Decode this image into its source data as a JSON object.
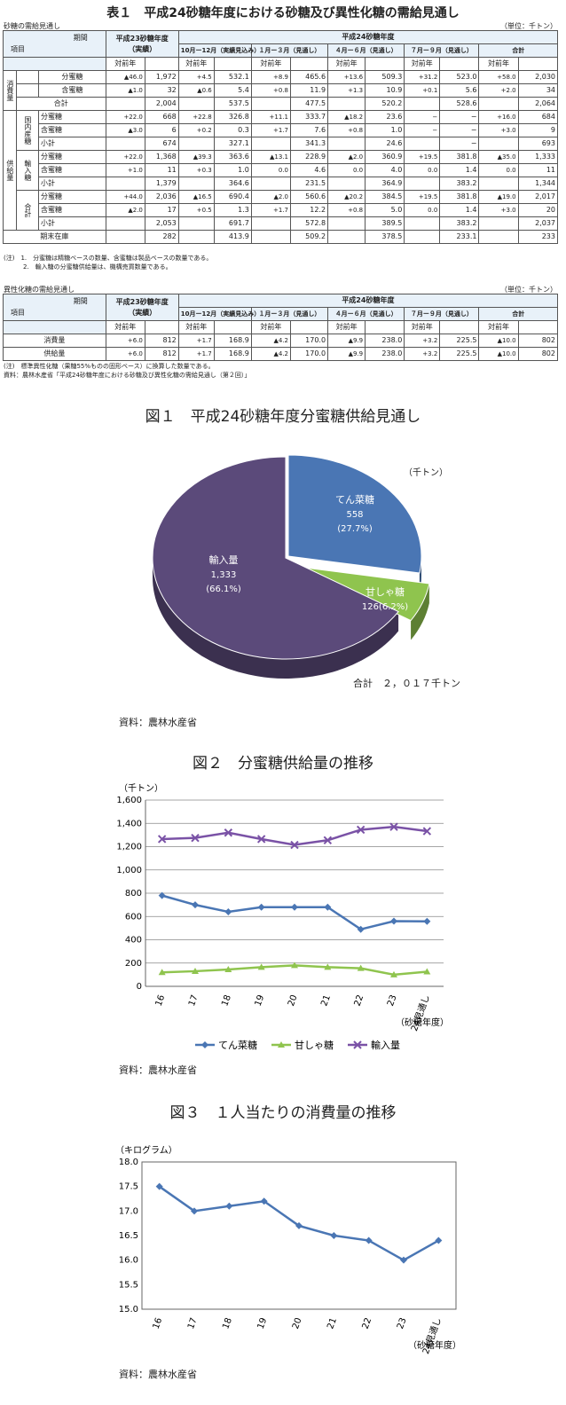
{
  "table1": {
    "title": "表１　平成24砂糖年度における砂糖及び異性化糖の需給見通し",
    "caption": "砂糖の需給見通し",
    "unit": "（単位：千トン）",
    "header": {
      "period": "期間",
      "item": "項目",
      "h23": "平成23砂糖年度",
      "h23sub": "（実績）",
      "h24": "平成24砂糖年度",
      "q1": "10月ー12月（実績見込み）",
      "q2": "１月ー３月（見通し）",
      "q3": "４月ー６月（見通し）",
      "q4": "７月ー９月（見通し）",
      "total": "合計",
      "yoy": "対前年"
    },
    "groups": {
      "consume": "消費量",
      "supply": "供給量",
      "domestic": "国内産糖",
      "import": "輸入糖",
      "sum": "合計",
      "total": "合計",
      "stock": "期末在庫"
    },
    "labels": {
      "bunmitsu": "分蜜糖",
      "ganmitsu": "含蜜糖",
      "subtotal": "小計"
    },
    "rows": [
      [
        "▲46.0",
        "1,972",
        "+4.5",
        "532.1",
        "+8.9",
        "465.6",
        "+13.6",
        "509.3",
        "+31.2",
        "523.0",
        "+58.0",
        "2,030"
      ],
      [
        "▲1.0",
        "32",
        "▲0.6",
        "5.4",
        "+0.8",
        "11.9",
        "+1.3",
        "10.9",
        "+0.1",
        "5.6",
        "+2.0",
        "34"
      ],
      [
        "",
        "2,004",
        "",
        "537.5",
        "",
        "477.5",
        "",
        "520.2",
        "",
        "528.6",
        "",
        "2,064"
      ],
      [
        "+22.0",
        "668",
        "+22.8",
        "326.8",
        "+11.1",
        "333.7",
        "▲18.2",
        "23.6",
        "−",
        "−",
        "+16.0",
        "684"
      ],
      [
        "▲3.0",
        "6",
        "+0.2",
        "0.3",
        "+1.7",
        "7.6",
        "+0.8",
        "1.0",
        "−",
        "−",
        "+3.0",
        "9"
      ],
      [
        "",
        "674",
        "",
        "327.1",
        "",
        "341.3",
        "",
        "24.6",
        "",
        "−",
        "",
        "693"
      ],
      [
        "+22.0",
        "1,368",
        "▲39.3",
        "363.6",
        "▲13.1",
        "228.9",
        "▲2.0",
        "360.9",
        "+19.5",
        "381.8",
        "▲35.0",
        "1,333"
      ],
      [
        "+1.0",
        "11",
        "+0.3",
        "1.0",
        "0.0",
        "4.6",
        "0.0",
        "4.0",
        "0.0",
        "1.4",
        "0.0",
        "11"
      ],
      [
        "",
        "1,379",
        "",
        "364.6",
        "",
        "231.5",
        "",
        "364.9",
        "",
        "383.2",
        "",
        "1,344"
      ],
      [
        "+44.0",
        "2,036",
        "▲16.5",
        "690.4",
        "▲2.0",
        "560.6",
        "▲20.2",
        "384.5",
        "+19.5",
        "381.8",
        "▲19.0",
        "2,017"
      ],
      [
        "▲2.0",
        "17",
        "+0.5",
        "1.3",
        "+1.7",
        "12.2",
        "+0.8",
        "5.0",
        "0.0",
        "1.4",
        "+3.0",
        "20"
      ],
      [
        "",
        "2,053",
        "",
        "691.7",
        "",
        "572.8",
        "",
        "389.5",
        "",
        "383.2",
        "",
        "2,037"
      ],
      [
        "",
        "282",
        "",
        "413.9",
        "",
        "509.2",
        "",
        "378.5",
        "",
        "233.1",
        "",
        "233"
      ]
    ],
    "note1": "(注)　1.　分蜜糖は精糖ベースの数量、含蜜糖は製品ベースの数量である。",
    "note2": "2.　輸入糖の分蜜糖供給量は、機構売買数量である。"
  },
  "table2": {
    "caption": "異性化糖の需給見通し",
    "unit": "（単位：千トン）",
    "rowlabels": [
      "消費量",
      "供給量"
    ],
    "rows": [
      [
        "+6.0",
        "812",
        "+1.7",
        "168.9",
        "▲4.2",
        "170.0",
        "▲9.9",
        "238.0",
        "+3.2",
        "225.5",
        "▲10.0",
        "802"
      ],
      [
        "+6.0",
        "812",
        "+1.7",
        "168.9",
        "▲4.2",
        "170.0",
        "▲9.9",
        "238.0",
        "+3.2",
        "225.5",
        "▲10.0",
        "802"
      ]
    ],
    "note1": "(注)　標準異性化糖（果糖55%ものの固形ベース）に換算した数量である。",
    "note2": "資料：農林水産省「平成24砂糖年度における砂糖及び異性化糖の需給見通し（第２回）」"
  },
  "fig1": {
    "title": "図１　平成24砂糖年度分蜜糖供給見通し",
    "unit": "（千トン）",
    "total_label": "合計　２，０１７千トン",
    "source": "資料：農林水産省",
    "chart_data": {
      "type": "pie",
      "slices": [
        {
          "name": "てん菜糖",
          "value": 558,
          "pct": "(27.7%)",
          "value_label": "558",
          "color": "#4a76b4"
        },
        {
          "name": "甘しゃ糖",
          "value": 126,
          "pct": "126(6.2%)",
          "value_label": "",
          "color": "#8fc44e"
        },
        {
          "name": "輸入量",
          "value": 1333,
          "pct": "(66.1%)",
          "value_label": "1,333",
          "color": "#5b4a7a"
        }
      ]
    }
  },
  "fig2": {
    "title": "図２　分蜜糖供給量の推移",
    "source": "資料：農林水産省",
    "chart_data": {
      "type": "line",
      "ylabel": "（千トン）",
      "xlabel": "（砂糖年度）",
      "categories": [
        "16",
        "17",
        "18",
        "19",
        "20",
        "21",
        "22",
        "23",
        "24見通し"
      ],
      "ylim": [
        0,
        1600
      ],
      "yticks": [
        "0",
        "200",
        "400",
        "600",
        "800",
        "1,000",
        "1,200",
        "1,400",
        "1,600"
      ],
      "series": [
        {
          "name": "てん菜糖",
          "color": "#4a76b4",
          "marker": "diamond",
          "values": [
            780,
            700,
            640,
            680,
            680,
            680,
            490,
            560,
            558
          ]
        },
        {
          "name": "甘しゃ糖",
          "color": "#8fc44e",
          "marker": "triangle",
          "values": [
            120,
            130,
            145,
            165,
            180,
            165,
            155,
            100,
            126
          ]
        },
        {
          "name": "輸入量",
          "color": "#7a52a6",
          "marker": "x",
          "values": [
            1265,
            1275,
            1320,
            1265,
            1215,
            1255,
            1345,
            1370,
            1333
          ]
        }
      ]
    }
  },
  "fig3": {
    "title": "図３　１人当たりの消費量の推移",
    "source": "資料：農林水産省",
    "chart_data": {
      "type": "line",
      "ylabel": "（キログラム）",
      "xlabel": "（砂糖年度）",
      "categories": [
        "16",
        "17",
        "18",
        "19",
        "20",
        "21",
        "22",
        "23",
        "24見通し"
      ],
      "ylim": [
        15.0,
        18.0
      ],
      "yticks": [
        "15.0",
        "15.5",
        "16.0",
        "16.5",
        "17.0",
        "17.5",
        "18.0"
      ],
      "series": [
        {
          "name": "",
          "color": "#4a76b4",
          "marker": "diamond",
          "values": [
            17.5,
            17.0,
            17.1,
            17.2,
            16.7,
            16.5,
            16.4,
            16.0,
            16.4
          ]
        }
      ]
    }
  }
}
